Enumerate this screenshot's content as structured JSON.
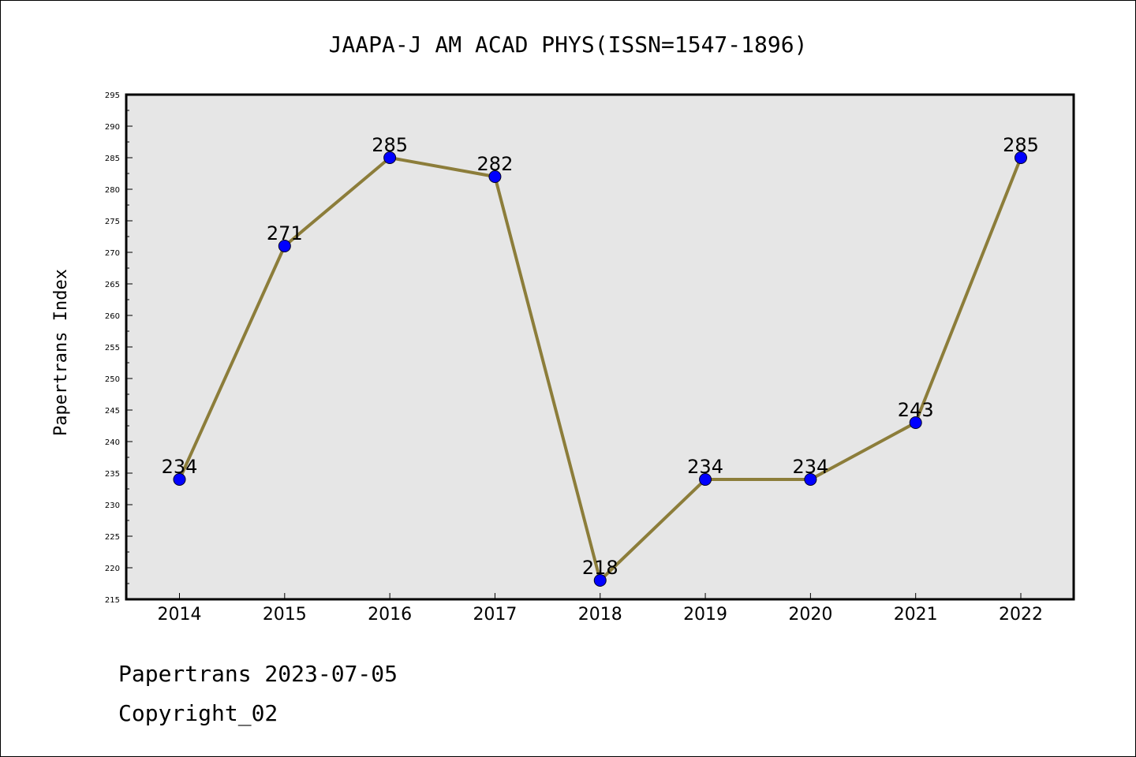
{
  "chart_data": {
    "type": "line",
    "title": "JAAPA-J AM ACAD PHYS(ISSN=1547-1896)",
    "xlabel": "",
    "ylabel": "Papertrans Index",
    "categories": [
      "2014",
      "2015",
      "2016",
      "2017",
      "2018",
      "2019",
      "2020",
      "2021",
      "2022"
    ],
    "values": [
      234,
      271,
      285,
      282,
      218,
      234,
      234,
      243,
      285
    ],
    "data_labels": [
      "234",
      "271",
      "285",
      "282",
      "218",
      "234",
      "234",
      "243",
      "285"
    ],
    "ylim": [
      215,
      295
    ],
    "yticks": [
      "215",
      "220",
      "225",
      "230",
      "235",
      "240",
      "245",
      "250",
      "255",
      "260",
      "265",
      "270",
      "275",
      "280",
      "285",
      "290",
      "295"
    ],
    "grid": false,
    "legend": "none",
    "colors": {
      "plot_background": "#e6e6e6",
      "line": "#8c7d3a",
      "marker": "#0000ff"
    }
  },
  "footer": {
    "line1": "Papertrans 2023-07-05",
    "line2": "Copyright_02"
  }
}
